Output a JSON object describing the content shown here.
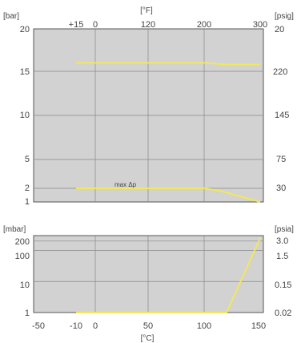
{
  "chart_data": [
    {
      "type": "line",
      "title": "",
      "x_unit_top": "[°F]",
      "x_ticks_top": [
        "+15",
        "0",
        "120",
        "200",
        "300"
      ],
      "y_unit_left": "[bar]",
      "y_unit_right": "[psig]",
      "y_ticks_left": [
        "20",
        "15",
        "10",
        "5",
        "2",
        "1"
      ],
      "y_ticks_right": [
        "20",
        "220",
        "145",
        "75",
        "30"
      ],
      "xlim": [
        -50,
        150
      ],
      "ylim": [
        1,
        20
      ],
      "annotations": [
        "max Δp"
      ],
      "series": [
        {
          "x": [
            -10,
            50,
            100,
            120,
            150
          ],
          "y": [
            16.0,
            16.0,
            16.0,
            15.8,
            15.8
          ]
        },
        {
          "x": [
            -10,
            50,
            100,
            115,
            150
          ],
          "y": [
            2.0,
            2.0,
            2.0,
            1.8,
            1.0
          ]
        }
      ],
      "grid": true
    },
    {
      "type": "line",
      "title": "",
      "x_unit_bottom": "[°C]",
      "x_ticks_bottom": [
        "-50",
        "-10",
        "0",
        "50",
        "100",
        "150"
      ],
      "y_unit_left": "[mbar]",
      "y_unit_right": "[psia]",
      "y_ticks_left": [
        "200",
        "100",
        "10",
        "1"
      ],
      "y_ticks_right": [
        "3.0",
        "1.5",
        "0.15",
        "0.02"
      ],
      "y_scale": "log",
      "xlim": [
        -50,
        150
      ],
      "ylim": [
        1,
        300
      ],
      "series": [
        {
          "x": [
            -10,
            50,
            100,
            120,
            150
          ],
          "y": [
            1,
            1,
            1,
            1,
            250
          ]
        }
      ],
      "grid": true
    }
  ]
}
